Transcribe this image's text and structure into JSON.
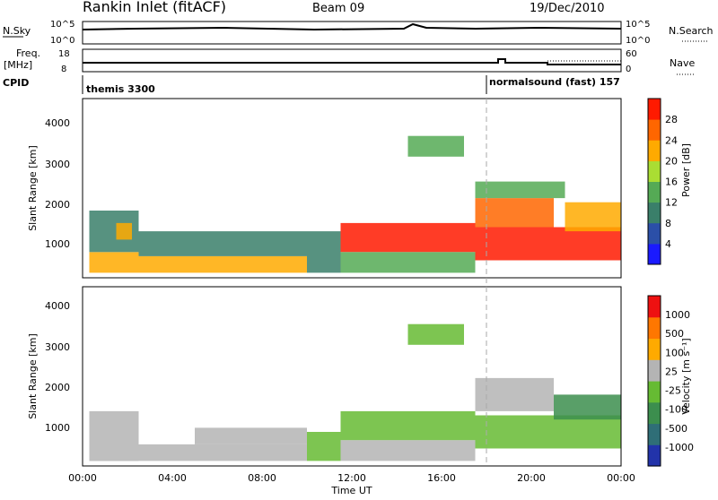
{
  "header": {
    "station": "Rankin Inlet (fitACF)",
    "beam": "Beam 09",
    "date": "19/Dec/2010"
  },
  "strips": {
    "nsky_label": "N.Sky",
    "nsky_ticks": [
      "10^5",
      "10^0"
    ],
    "nsearch_label": "N.Search",
    "nsearch_ticks": [
      "10^5",
      "10^0"
    ],
    "freq_label": "Freq.",
    "freq_unit": "[MHz]",
    "freq_ticks": [
      "18",
      "8"
    ],
    "nave_label": "Nave",
    "nave_ticks": [
      "60",
      "0"
    ],
    "cpid_label": "CPID",
    "cpid_segments": [
      {
        "text": "themis 3300",
        "start_hour": 0
      },
      {
        "text": "normalsound (fast)  157",
        "start_hour": 18
      }
    ]
  },
  "panels": [
    {
      "ylabel": "Slant Range [km]",
      "yticks": [
        "4000",
        "3000",
        "2000",
        "1000"
      ],
      "colorbar_title": "Power [dB]",
      "colorbar_labels": [
        "28",
        "24",
        "20",
        "16",
        "12",
        "8",
        "4"
      ]
    },
    {
      "ylabel": "Slant Range [km]",
      "yticks": [
        "4000",
        "3000",
        "2000",
        "1000"
      ],
      "colorbar_title": "Velocity [m s⁻¹]",
      "colorbar_labels": [
        "1000",
        "500",
        "100",
        "25",
        "-25",
        "-100",
        "-500",
        "-1000"
      ]
    }
  ],
  "xaxis": {
    "ticks": [
      "00:00",
      "04:00",
      "08:00",
      "12:00",
      "16:00",
      "20:00",
      "00:00"
    ],
    "label": "Time UT"
  },
  "colors": {
    "power_scale": [
      "#1a1aff",
      "#2b4fa8",
      "#3a7f6a",
      "#55aa55",
      "#aadd33",
      "#ffaa00",
      "#ff6600",
      "#ff1a00"
    ],
    "velocity_scale": [
      "#2233aa",
      "#2f6e77",
      "#3c8e4e",
      "#66bb33",
      "#b4b4b4",
      "#ffaa00",
      "#ff7700",
      "#ee1111"
    ]
  },
  "chart_data": [
    {
      "type": "heatmap",
      "name": "Power [dB]",
      "x_range_hours": [
        0,
        24
      ],
      "y_range_km": [
        180,
        4500
      ],
      "clim": [
        0,
        30
      ],
      "regions": [
        {
          "t": [
            0.3,
            2.5
          ],
          "r": [
            300,
            800
          ],
          "v": 22
        },
        {
          "t": [
            0.3,
            2.5
          ],
          "r": [
            800,
            1800
          ],
          "v": 9
        },
        {
          "t": [
            1.5,
            2.2
          ],
          "r": [
            1100,
            1500
          ],
          "v": 20
        },
        {
          "t": [
            2.5,
            10.0
          ],
          "r": [
            300,
            700
          ],
          "v": 20
        },
        {
          "t": [
            2.5,
            10.0
          ],
          "r": [
            700,
            1300
          ],
          "v": 8
        },
        {
          "t": [
            10.0,
            11.5
          ],
          "r": [
            300,
            1300
          ],
          "v": 9
        },
        {
          "t": [
            11.5,
            17.5
          ],
          "r": [
            800,
            1500
          ],
          "v": 27
        },
        {
          "t": [
            11.5,
            17.5
          ],
          "r": [
            300,
            800
          ],
          "v": 12
        },
        {
          "t": [
            14.5,
            17.0
          ],
          "r": [
            3100,
            3600
          ],
          "v": 14
        },
        {
          "t": [
            17.5,
            24.0
          ],
          "r": [
            600,
            1400
          ],
          "v": 29
        },
        {
          "t": [
            17.5,
            21.0
          ],
          "r": [
            1400,
            2100
          ],
          "v": 23
        },
        {
          "t": [
            17.5,
            21.5
          ],
          "r": [
            2100,
            2500
          ],
          "v": 12
        },
        {
          "t": [
            21.5,
            24.0
          ],
          "r": [
            1300,
            2000
          ],
          "v": 20
        }
      ]
    },
    {
      "type": "heatmap",
      "name": "Velocity [m s⁻¹]",
      "x_range_hours": [
        0,
        24
      ],
      "y_range_km": [
        180,
        4500
      ],
      "clim": [
        -1000,
        1000
      ],
      "regions": [
        {
          "t": [
            0.3,
            2.5
          ],
          "r": [
            300,
            1500
          ],
          "v": 60
        },
        {
          "t": [
            2.5,
            10.0
          ],
          "r": [
            300,
            700
          ],
          "v": 80
        },
        {
          "t": [
            5.0,
            10.0
          ],
          "r": [
            700,
            1100
          ],
          "v": 0
        },
        {
          "t": [
            10.0,
            11.5
          ],
          "r": [
            300,
            1000
          ],
          "v": -150
        },
        {
          "t": [
            11.5,
            17.5
          ],
          "r": [
            800,
            1500
          ],
          "v": -120
        },
        {
          "t": [
            11.5,
            17.5
          ],
          "r": [
            300,
            800
          ],
          "v": 50
        },
        {
          "t": [
            14.5,
            17.0
          ],
          "r": [
            3100,
            3600
          ],
          "v": -150
        },
        {
          "t": [
            17.5,
            21.0
          ],
          "r": [
            1500,
            2300
          ],
          "v": 0
        },
        {
          "t": [
            17.5,
            24.0
          ],
          "r": [
            600,
            1400
          ],
          "v": -200
        },
        {
          "t": [
            21.0,
            24.0
          ],
          "r": [
            1300,
            1900
          ],
          "v": -300
        }
      ]
    }
  ]
}
